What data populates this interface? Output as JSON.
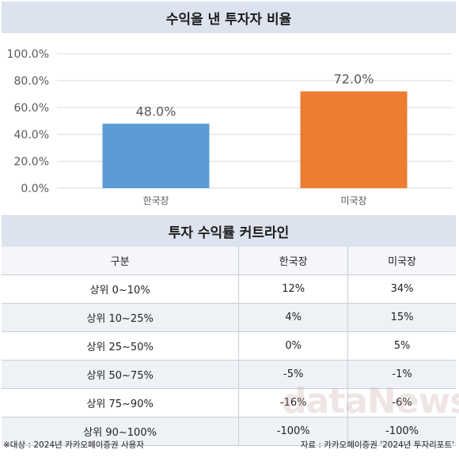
{
  "chart_title": "수익을 낸 투자자 비율",
  "chart_data": {
    "type": "bar",
    "categories": [
      "한국장",
      "미국장"
    ],
    "values": [
      48.0,
      72.0
    ],
    "value_labels": [
      "48.0%",
      "72.0%"
    ],
    "colors": [
      "#5b9bd5",
      "#ed7d31"
    ],
    "ylim": [
      0,
      100
    ],
    "yticks": [
      "0.0%",
      "20.0%",
      "40.0%",
      "60.0%",
      "80.0%",
      "100.0%"
    ],
    "grid": true
  },
  "table": {
    "title": "투자 수익률 커트라인",
    "headers": [
      "구분",
      "한국장",
      "미국장"
    ],
    "rows": [
      [
        "상위 0~10%",
        "12%",
        "34%"
      ],
      [
        "상위 10~25%",
        "4%",
        "15%"
      ],
      [
        "상위 25~50%",
        "0%",
        "5%"
      ],
      [
        "상위 50~75%",
        "-5%",
        "-1%"
      ],
      [
        "상위 75~90%",
        "-16%",
        "-6%"
      ],
      [
        "상위 90~100%",
        "-100%",
        "-100%"
      ]
    ]
  },
  "watermark": "dataNews",
  "footer": {
    "left": "※대상 : 2024년 카카오페이증권 사용자",
    "right": "자료 : 카카오페이증권 '2024년 투자리포트'"
  }
}
